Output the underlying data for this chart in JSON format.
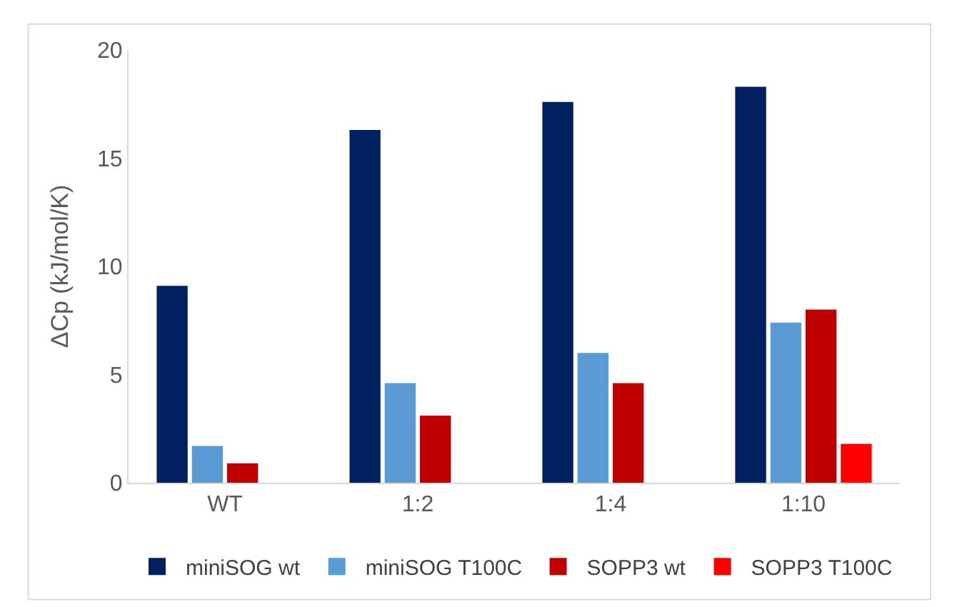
{
  "chart_data": {
    "type": "bar",
    "ylabel": "ΔCp (kJ/mol/K)",
    "categories": [
      "WT",
      "1:2",
      "1:4",
      "1:10"
    ],
    "series": [
      {
        "name": "miniSOG wt",
        "color": "#002060",
        "values": [
          9.1,
          16.3,
          17.6,
          18.3
        ]
      },
      {
        "name": "miniSOG T100C",
        "color": "#5b9bd5",
        "values": [
          1.7,
          4.6,
          6.0,
          7.4
        ]
      },
      {
        "name": "SOPP3 wt",
        "color": "#c00000",
        "values": [
          0.9,
          3.1,
          4.6,
          8.0
        ]
      },
      {
        "name": "SOPP3 T100C",
        "color": "#ff0000",
        "values": [
          null,
          null,
          null,
          1.8
        ]
      }
    ],
    "ylim": [
      0,
      20
    ],
    "yticks": [
      0,
      5,
      10,
      15,
      20
    ],
    "grid": false,
    "legend": "bottom"
  }
}
